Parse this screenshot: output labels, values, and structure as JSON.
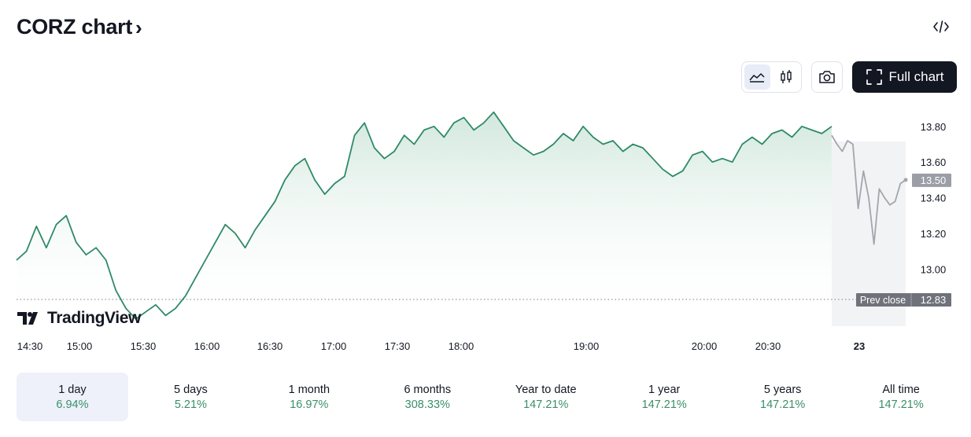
{
  "header": {
    "title": "CORZ chart",
    "chevron": "›",
    "embed_icon": "code-icon"
  },
  "toolbar": {
    "line_view_icon": "line-chart-icon",
    "candle_view_icon": "candlestick-icon",
    "screenshot_icon": "camera-icon",
    "full_chart_label": "Full chart",
    "full_chart_icon": "fullscreen-icon"
  },
  "brand": {
    "name": "TradingView",
    "logo_icon": "tradingview-logo-icon"
  },
  "colors": {
    "line": "#2e8a66",
    "area_top": "#cfe6dc",
    "extended": "#a3a6ae",
    "accent_dark": "#131722",
    "positive": "#3b8e6a"
  },
  "chart_data": {
    "type": "area",
    "ylim": [
      12.68,
      13.98
    ],
    "y_ticks": [
      "13.80",
      "13.60",
      "13.40",
      "13.20",
      "13.00"
    ],
    "x_ticks": [
      "14:30",
      "15:00",
      "15:30",
      "16:00",
      "16:30",
      "17:00",
      "17:30",
      "18:00",
      "19:00",
      "20:00",
      "20:30",
      "23"
    ],
    "current_price_label": "13.50",
    "prev_close": {
      "label": "Prev close",
      "value": "12.83"
    },
    "series": [
      {
        "values": [
          13.05,
          13.1,
          13.24,
          13.12,
          13.25,
          13.3,
          13.15,
          13.08,
          13.12,
          13.05,
          12.88,
          12.78,
          12.72,
          12.76,
          12.8,
          12.74,
          12.78,
          12.85,
          12.95,
          13.05,
          13.15,
          13.25,
          13.2,
          13.12,
          13.22,
          13.3,
          13.38,
          13.5,
          13.58,
          13.62,
          13.5,
          13.42,
          13.48,
          13.52,
          13.75,
          13.82,
          13.68,
          13.62,
          13.66,
          13.75,
          13.7,
          13.78,
          13.8,
          13.74,
          13.82,
          13.85,
          13.78,
          13.82,
          13.88,
          13.8,
          13.72,
          13.68,
          13.64,
          13.66,
          13.7,
          13.76,
          13.72,
          13.8,
          13.74,
          13.7,
          13.72,
          13.66,
          13.7,
          13.68,
          13.62,
          13.56,
          13.52,
          13.55,
          13.64,
          13.66,
          13.6,
          13.62,
          13.6,
          13.7,
          13.74,
          13.7,
          13.76,
          13.78,
          13.74,
          13.8,
          13.78,
          13.76,
          13.8
        ]
      },
      {
        "name": "",
        "values": [
          13.75,
          13.7,
          13.66,
          13.72,
          13.7,
          13.34,
          13.55,
          13.4,
          13.14,
          13.45,
          13.4,
          13.36,
          13.38,
          13.48,
          13.5
        ]
      }
    ]
  },
  "timeframes": [
    {
      "label": "1 day",
      "change": "6.94%",
      "active": true
    },
    {
      "label": "5 days",
      "change": "5.21%"
    },
    {
      "label": "1 month",
      "change": "16.97%"
    },
    {
      "label": "6 months",
      "change": "308.33%"
    },
    {
      "label": "Year to date",
      "change": "147.21%"
    },
    {
      "label": "1 year",
      "change": "147.21%"
    },
    {
      "label": "5 years",
      "change": "147.21%"
    },
    {
      "label": "All time",
      "change": "147.21%"
    }
  ]
}
